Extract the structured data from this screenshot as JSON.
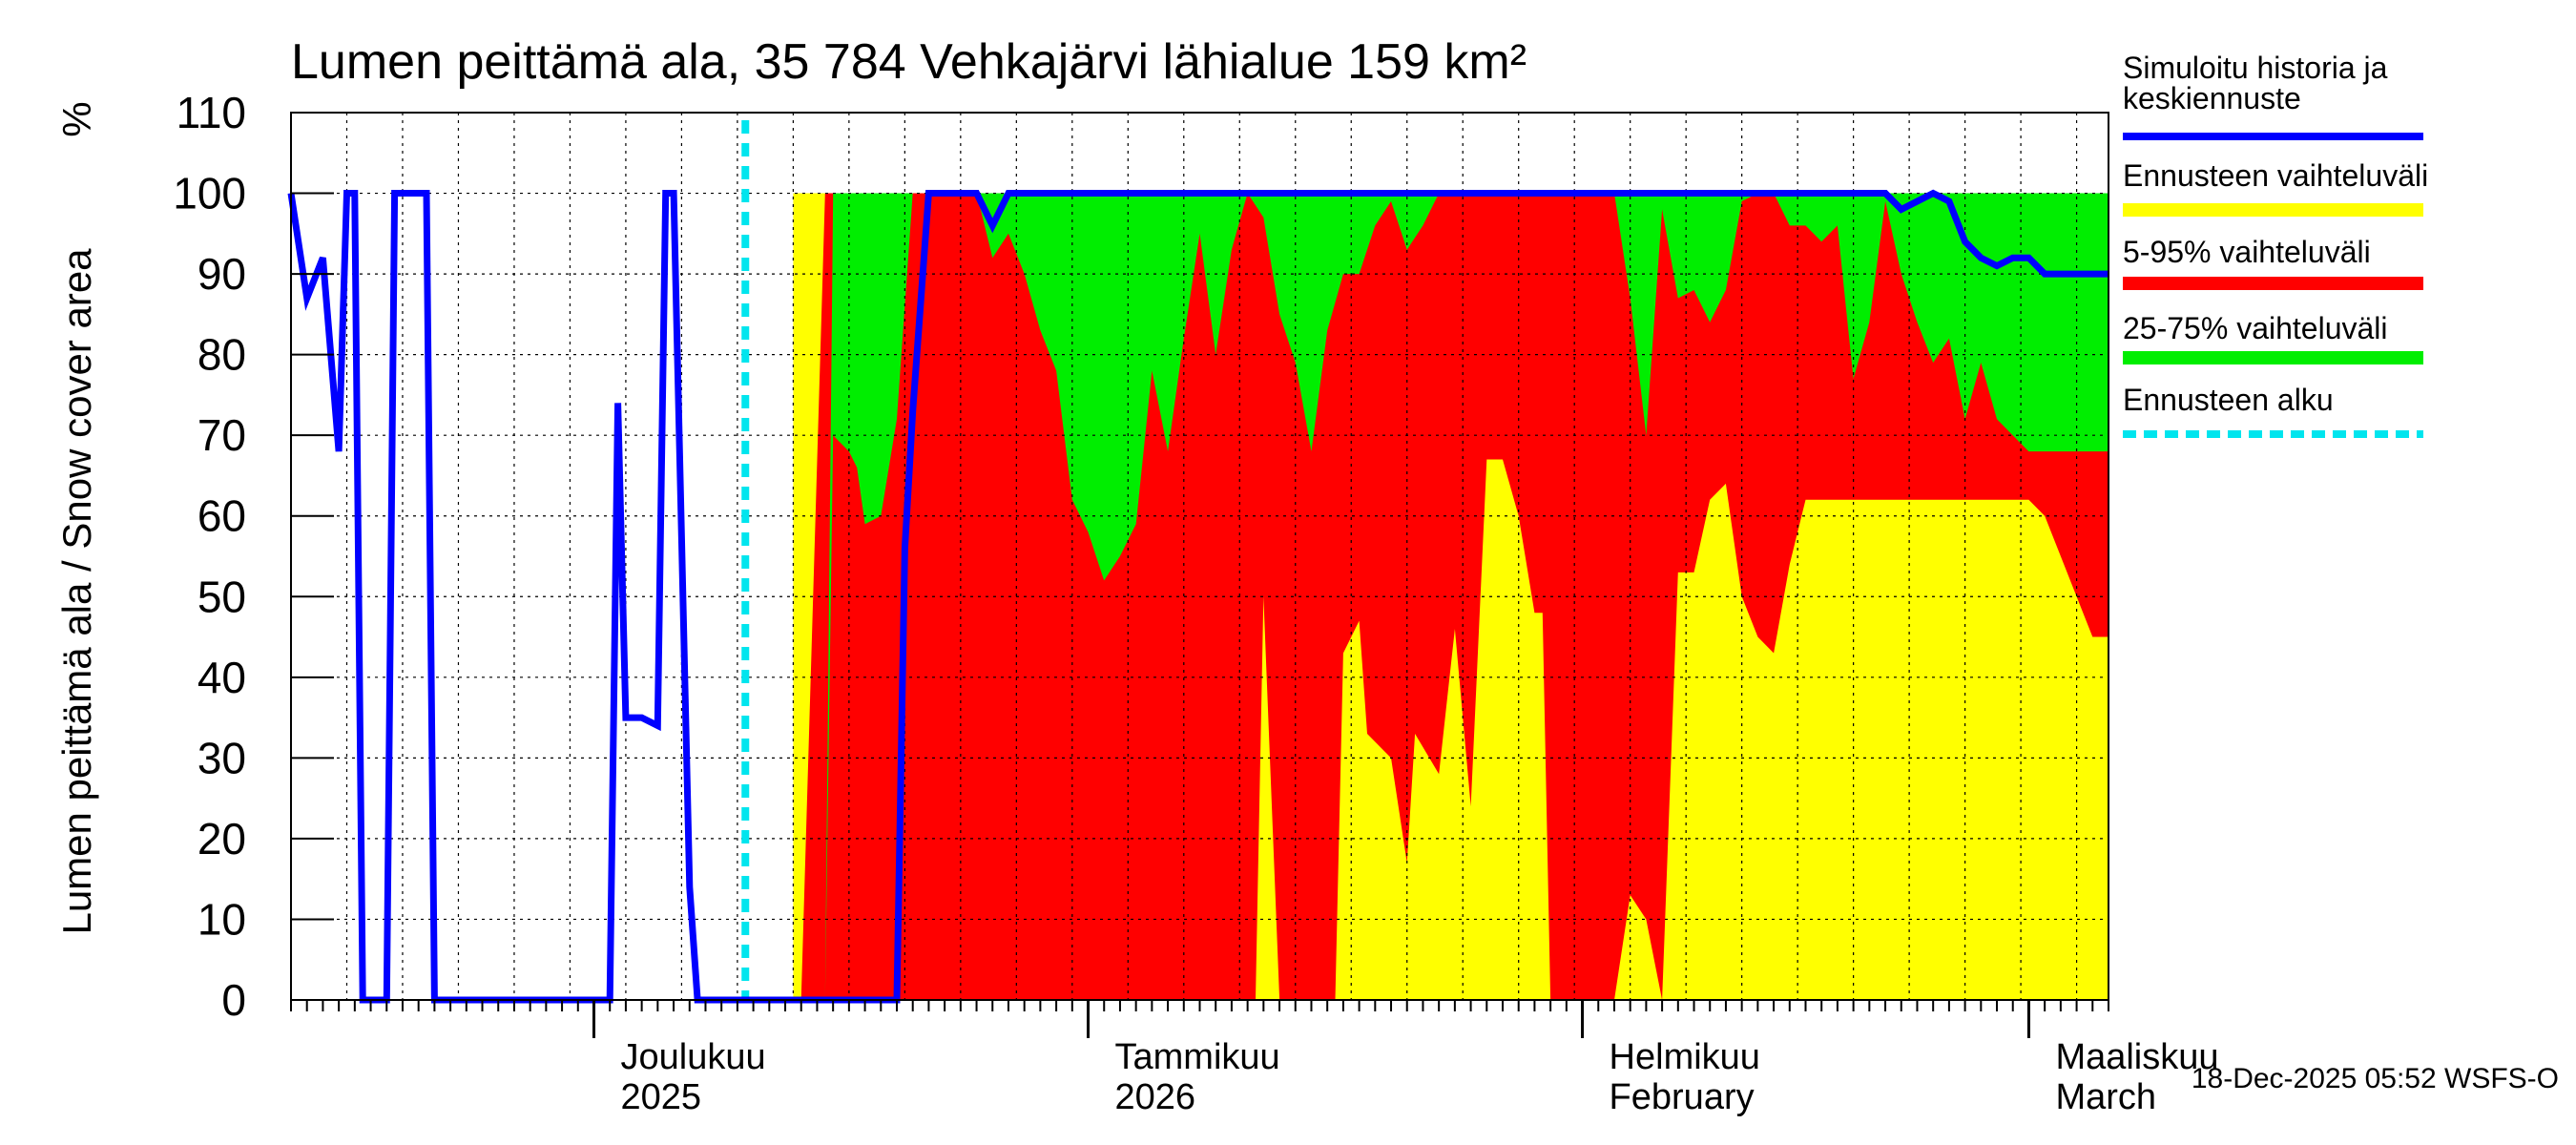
{
  "chart_data": {
    "type": "area",
    "title": "Lumen peittämä ala, 35 784 Vehkajärvi lähialue 159 km²",
    "ylabel": "Lumen peittämä ala / Snow cover area",
    "yunit": "%",
    "ylim": [
      0,
      110
    ],
    "yticks": [
      0,
      10,
      20,
      30,
      40,
      50,
      60,
      70,
      80,
      90,
      100,
      110
    ],
    "x_unit": "days since 2025-11-12",
    "xlim": [
      0,
      114
    ],
    "month_boundaries": [
      19,
      50,
      81,
      109
    ],
    "month_labels": [
      {
        "x": 19,
        "line1": "Joulukuu",
        "line2": "2025"
      },
      {
        "x": 50,
        "line1": "Tammikuu",
        "line2": "2026"
      },
      {
        "x": 81,
        "line1": "Helmikuu",
        "line2": "February"
      },
      {
        "x": 109,
        "line1": "Maaliskuu",
        "line2": "March"
      }
    ],
    "forecast_start": 28.5,
    "grid": true,
    "legend": {
      "position": "right",
      "items": [
        {
          "label": "Simuloitu historia ja keskiennuste",
          "color": "#0000ff",
          "style": "line"
        },
        {
          "label": "Ennusteen vaihteluväli",
          "color": "#ffff00",
          "style": "band"
        },
        {
          "label": "5-95% vaihteluväli",
          "color": "#ff0000",
          "style": "band"
        },
        {
          "label": "25-75% vaihteluväli",
          "color": "#00ee00",
          "style": "band"
        },
        {
          "label": "Ennusteen alku",
          "color": "#00e5ee",
          "style": "dashed"
        }
      ]
    },
    "series": [
      {
        "name": "Ennusteen vaihteluväli",
        "color": "#ffff00",
        "kind": "band",
        "x": [
          31.5,
          31.5,
          32,
          33.5,
          35,
          40,
          42,
          48,
          55,
          57,
          60,
          60.5,
          61,
          62,
          63.5,
          64,
          65,
          65.5,
          66,
          67,
          67.5,
          69,
          70,
          70.5,
          72,
          73,
          74,
          75,
          76,
          77,
          78,
          78.5,
          79,
          80,
          81,
          81.5,
          82,
          83,
          84,
          85,
          86,
          87,
          88,
          89,
          90,
          91,
          92,
          93,
          94,
          95,
          96,
          97,
          98,
          99,
          100,
          101,
          102,
          103,
          104,
          105,
          106,
          107,
          108,
          109,
          110,
          111,
          112,
          113,
          114
        ],
        "upper": [
          0,
          100,
          100,
          100,
          100,
          100,
          100,
          100,
          100,
          100,
          100,
          100,
          100,
          100,
          100,
          100,
          100,
          100,
          100,
          100,
          100,
          100,
          100,
          100,
          100,
          100,
          100,
          100,
          100,
          100,
          100,
          100,
          100,
          100,
          100,
          100,
          100,
          100,
          100,
          100,
          100,
          100,
          100,
          100,
          100,
          100,
          100,
          100,
          100,
          100,
          100,
          100,
          100,
          100,
          100,
          100,
          100,
          100,
          100,
          100,
          100,
          100,
          100,
          100,
          100,
          100,
          100,
          100,
          100
        ],
        "lower": [
          0,
          0,
          0,
          0,
          0,
          0,
          0,
          0,
          0,
          0,
          0,
          0,
          0,
          0,
          0,
          0,
          0,
          0,
          0,
          0,
          0,
          0,
          0,
          0,
          0,
          0,
          0,
          0,
          0,
          0,
          0,
          0,
          0,
          0,
          0,
          0,
          0,
          0,
          0,
          0,
          0,
          0,
          0,
          0,
          0,
          0,
          0,
          0,
          0,
          0,
          0,
          0,
          0,
          0,
          0,
          0,
          0,
          0,
          0,
          0,
          0,
          0,
          0,
          0,
          0,
          0,
          0,
          0,
          0
        ]
      },
      {
        "name": "5-95% vaihteluväli",
        "color": "#ff0000",
        "kind": "band",
        "x": [
          31.5,
          31.5,
          32,
          33.5,
          35,
          40,
          42,
          48,
          55,
          57,
          60,
          60.5,
          61,
          62,
          63.5,
          64,
          65,
          65.5,
          66,
          67,
          67.5,
          69,
          70,
          70.5,
          72,
          73,
          74,
          75,
          76,
          77,
          78,
          78.5,
          79,
          80,
          81,
          81.5,
          82,
          83,
          84,
          85,
          86,
          87,
          88,
          89,
          90,
          91,
          92,
          93,
          94,
          95,
          96,
          97,
          98,
          99,
          100,
          101,
          102,
          103,
          104,
          105,
          106,
          107,
          108,
          109,
          110,
          111,
          112,
          113,
          114
        ],
        "upper": [
          0,
          0,
          0,
          100,
          100,
          100,
          100,
          100,
          100,
          100,
          100,
          100,
          100,
          100,
          100,
          100,
          100,
          100,
          100,
          100,
          100,
          100,
          100,
          100,
          100,
          100,
          100,
          100,
          100,
          100,
          100,
          100,
          100,
          100,
          100,
          100,
          100,
          100,
          100,
          100,
          100,
          100,
          100,
          100,
          100,
          100,
          100,
          100,
          100,
          100,
          100,
          100,
          100,
          100,
          100,
          100,
          100,
          100,
          100,
          100,
          100,
          100,
          100,
          100,
          100,
          100,
          100,
          100,
          100
        ],
        "lower": [
          0,
          0,
          0,
          0,
          0,
          0,
          0,
          0,
          0,
          0,
          0,
          0,
          50,
          0,
          0,
          0,
          0,
          0,
          43,
          47,
          33,
          30,
          17,
          33,
          28,
          46,
          24,
          67,
          67,
          60,
          48,
          48,
          0,
          0,
          0,
          0,
          0,
          0,
          13,
          10,
          0,
          53,
          53,
          62,
          64,
          50,
          45,
          43,
          54,
          62,
          62,
          62,
          62,
          62,
          62,
          62,
          62,
          62,
          62,
          62,
          62,
          62,
          62,
          62,
          60,
          55,
          50,
          45,
          45
        ]
      },
      {
        "name": "25-75% vaihteluväli",
        "color": "#00ee00",
        "kind": "band",
        "x": [
          31.5,
          32,
          33,
          33.5,
          34,
          35,
          35.5,
          36,
          37,
          38,
          39,
          40,
          41,
          42,
          43,
          44,
          45,
          46,
          47,
          48,
          49,
          50,
          51,
          52,
          53,
          54,
          55,
          56,
          57,
          58,
          59,
          60,
          61,
          62,
          63,
          64,
          65,
          66,
          67,
          68,
          69,
          70,
          71,
          72,
          73,
          74,
          75,
          76,
          77,
          78,
          79,
          80,
          81,
          82,
          83,
          84,
          85,
          86,
          87,
          88,
          89,
          90,
          91,
          92,
          93,
          94,
          95,
          96,
          97,
          98,
          99,
          100,
          101,
          102,
          103,
          104,
          105,
          106,
          107,
          108,
          109,
          110,
          111,
          112,
          113,
          114
        ],
        "upper": [
          0,
          0,
          0,
          0,
          100,
          100,
          100,
          100,
          100,
          100,
          100,
          100,
          100,
          100,
          100,
          100,
          100,
          100,
          100,
          100,
          100,
          100,
          100,
          100,
          100,
          100,
          100,
          100,
          100,
          100,
          100,
          100,
          100,
          100,
          100,
          100,
          100,
          100,
          100,
          100,
          100,
          100,
          100,
          100,
          100,
          100,
          100,
          100,
          100,
          100,
          100,
          100,
          100,
          100,
          100,
          100,
          100,
          100,
          100,
          100,
          100,
          100,
          100,
          100,
          100,
          100,
          100,
          100,
          100,
          100,
          100,
          100,
          100,
          100,
          100,
          100,
          100,
          100,
          100,
          100,
          100,
          100,
          100,
          100,
          100,
          100
        ],
        "lower": [
          0,
          0,
          0,
          0,
          70,
          68,
          66,
          59,
          60,
          72,
          100,
          100,
          100,
          100,
          100,
          92,
          95,
          90,
          83,
          78,
          62,
          58,
          52,
          55,
          59,
          78,
          68,
          82,
          95,
          80,
          93,
          100,
          97,
          85,
          79,
          68,
          83,
          90,
          90,
          96,
          99,
          93,
          96,
          100,
          100,
          100,
          100,
          100,
          100,
          100,
          100,
          100,
          100,
          100,
          100,
          87,
          70,
          98,
          87,
          88,
          84,
          88,
          99,
          100,
          100,
          96,
          96,
          94,
          96,
          77,
          84,
          99,
          90,
          84,
          79,
          82,
          72,
          79,
          72,
          70,
          68,
          68,
          68,
          68,
          68,
          68
        ]
      },
      {
        "name": "Simuloitu historia ja keskiennuste",
        "color": "#0000ff",
        "kind": "line",
        "x": [
          0,
          1,
          2,
          3,
          3.5,
          4,
          4.5,
          5,
          6,
          6.5,
          7,
          8,
          8.5,
          9,
          10,
          20,
          20.5,
          21,
          22,
          23,
          23.5,
          24,
          25,
          25.5,
          26,
          27,
          30,
          35,
          38,
          38.5,
          39,
          40,
          41,
          42,
          43,
          44,
          45,
          46,
          47,
          48,
          49,
          50,
          100,
          101,
          102,
          103,
          104,
          105,
          106,
          107,
          108,
          109,
          110,
          111,
          112,
          113,
          114
        ],
        "y": [
          100,
          87,
          92,
          68,
          100,
          100,
          0,
          0,
          0,
          100,
          100,
          100,
          100,
          0,
          0,
          0,
          74,
          35,
          35,
          34,
          100,
          100,
          14,
          0,
          0,
          0,
          0,
          0,
          0,
          56,
          73,
          100,
          100,
          100,
          100,
          96,
          100,
          100,
          100,
          100,
          100,
          100,
          100,
          98,
          99,
          100,
          99,
          94,
          92,
          91,
          92,
          92,
          90,
          90,
          90,
          90,
          90
        ]
      }
    ]
  },
  "footer": {
    "timestamp": "18-Dec-2025 05:52 WSFS-O"
  }
}
